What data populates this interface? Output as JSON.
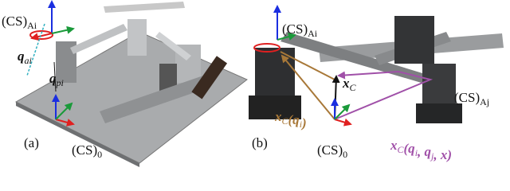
{
  "panel_a": {
    "label": "(a)",
    "arm_frame": {
      "parts": [
        {
          "text": "(CS)"
        },
        {
          "sub": "Ai"
        }
      ]
    },
    "active_joint": {
      "parts": [
        {
          "text": "q"
        },
        {
          "sub": "ai"
        }
      ]
    },
    "passive_joint": {
      "parts": [
        {
          "text": "q"
        },
        {
          "sub": "pi"
        }
      ]
    },
    "base_frame": {
      "parts": [
        {
          "text": "(CS)"
        },
        {
          "sub": "0"
        }
      ]
    }
  },
  "panel_b": {
    "label": "(b)",
    "arm_frame_i": {
      "parts": [
        {
          "text": "(CS)"
        },
        {
          "sub": "Ai"
        }
      ]
    },
    "arm_frame_j": {
      "parts": [
        {
          "text": "(CS)"
        },
        {
          "sub": "Aj"
        }
      ]
    },
    "base_frame": {
      "parts": [
        {
          "text": "(CS)"
        },
        {
          "sub": "0"
        }
      ]
    },
    "tcp": {
      "parts": [
        {
          "text": "x"
        },
        {
          "sub": "C"
        }
      ]
    },
    "tcp_arm_i": {
      "parts": [
        {
          "text": "x"
        },
        {
          "sub": "C"
        },
        {
          "text": "(q"
        },
        {
          "sub": "i"
        },
        {
          "text": ")"
        }
      ]
    },
    "tcp_closed_loop": {
      "parts": [
        {
          "text": "x"
        },
        {
          "sub": "C"
        },
        {
          "text": "(q"
        },
        {
          "sub": "i"
        },
        {
          "text": ", q"
        },
        {
          "sub": "j"
        },
        {
          "text": ", x)"
        }
      ]
    }
  }
}
